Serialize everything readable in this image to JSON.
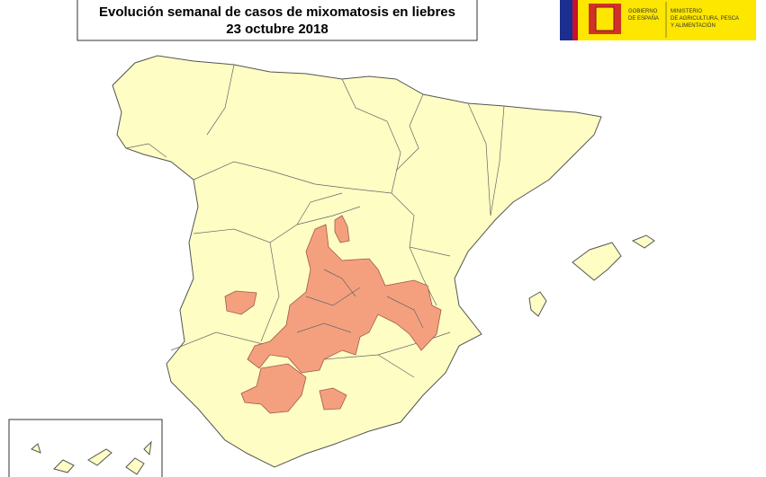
{
  "header": {
    "title": "Evolución semanal de casos de mixomatosis en liebres",
    "date": "23 octubre 2018"
  },
  "logo": {
    "government": [
      "GOBIERNO",
      "DE ESPAÑA"
    ],
    "ministry": [
      "MINISTERIO",
      "DE AGRICULTURA, PESCA",
      "Y ALIMENTACIÓN"
    ]
  }
}
